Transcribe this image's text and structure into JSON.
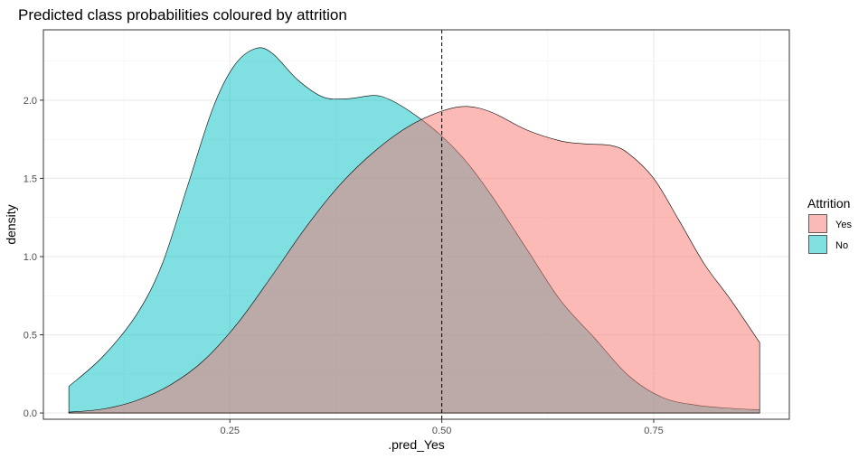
{
  "chart_data": {
    "type": "area",
    "title": "Predicted class probabilities coloured by attrition",
    "xlabel": ".pred_Yes",
    "ylabel": "density",
    "xlim": [
      0.03,
      0.91
    ],
    "ylim": [
      -0.04,
      2.45
    ],
    "x_ticks": [
      0.25,
      0.5,
      0.75
    ],
    "x_tick_labels": [
      "0.25",
      "0.50",
      "0.75"
    ],
    "y_ticks": [
      0,
      0.5,
      1,
      1.5,
      2
    ],
    "y_tick_labels": [
      "0.0",
      "0.5",
      "1.0",
      "1.5",
      "2.0"
    ],
    "grid": true,
    "legend": {
      "title": "Attrition",
      "position": "right"
    },
    "vline": {
      "x": 0.5,
      "style": "dashed",
      "color": "#000000"
    },
    "series": [
      {
        "name": "Yes",
        "color": "#F8766D",
        "opacity": 0.5,
        "points": [
          [
            0.06,
            0.005
          ],
          [
            0.1,
            0.025
          ],
          [
            0.14,
            0.08
          ],
          [
            0.18,
            0.18
          ],
          [
            0.22,
            0.34
          ],
          [
            0.26,
            0.58
          ],
          [
            0.3,
            0.88
          ],
          [
            0.34,
            1.19
          ],
          [
            0.38,
            1.46
          ],
          [
            0.42,
            1.67
          ],
          [
            0.46,
            1.83
          ],
          [
            0.5,
            1.93
          ],
          [
            0.53,
            1.96
          ],
          [
            0.56,
            1.92
          ],
          [
            0.6,
            1.81
          ],
          [
            0.64,
            1.74
          ],
          [
            0.67,
            1.72
          ],
          [
            0.7,
            1.71
          ],
          [
            0.72,
            1.66
          ],
          [
            0.75,
            1.5
          ],
          [
            0.78,
            1.23
          ],
          [
            0.81,
            0.95
          ],
          [
            0.84,
            0.73
          ],
          [
            0.875,
            0.45
          ]
        ]
      },
      {
        "name": "No",
        "color": "#00BFC4",
        "opacity": 0.5,
        "points": [
          [
            0.06,
            0.17
          ],
          [
            0.1,
            0.36
          ],
          [
            0.14,
            0.63
          ],
          [
            0.17,
            0.95
          ],
          [
            0.2,
            1.45
          ],
          [
            0.23,
            1.95
          ],
          [
            0.255,
            2.22
          ],
          [
            0.28,
            2.33
          ],
          [
            0.3,
            2.3
          ],
          [
            0.33,
            2.13
          ],
          [
            0.36,
            2.02
          ],
          [
            0.39,
            2.01
          ],
          [
            0.42,
            2.03
          ],
          [
            0.44,
            2.0
          ],
          [
            0.47,
            1.9
          ],
          [
            0.5,
            1.77
          ],
          [
            0.53,
            1.6
          ],
          [
            0.56,
            1.38
          ],
          [
            0.6,
            1.05
          ],
          [
            0.64,
            0.72
          ],
          [
            0.68,
            0.48
          ],
          [
            0.72,
            0.24
          ],
          [
            0.76,
            0.1
          ],
          [
            0.8,
            0.05
          ],
          [
            0.84,
            0.03
          ],
          [
            0.875,
            0.02
          ]
        ]
      }
    ]
  }
}
